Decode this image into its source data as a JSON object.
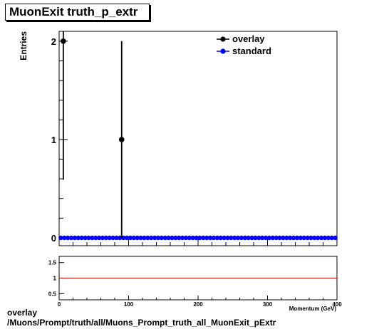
{
  "title": "MuonExit truth_p_extr",
  "footer": {
    "line1": "overlay",
    "line2": "/Muons/Prompt/truth/all/Muons_Prompt_truth_all_MuonExit_pExtr"
  },
  "colors": {
    "overlay": "#000000",
    "standard": "#0000ff",
    "ratio_line": "#cc0000"
  },
  "chart_data": [
    {
      "type": "scatter",
      "ylabel": "Entries",
      "xlim": [
        0,
        400
      ],
      "ylim": [
        -0.08,
        2.1
      ],
      "y_ticks": [
        0,
        1,
        2
      ],
      "legend": {
        "placement": "top-right"
      },
      "series": [
        {
          "name": "overlay",
          "points": [
            {
              "x": 6,
              "y": 2,
              "err_low": 1.41,
              "err_high": 2.1
            },
            {
              "x": 90,
              "y": 1,
              "err_low": 1.0,
              "err_high": 1.0
            }
          ]
        },
        {
          "name": "standard",
          "bin_width": 5,
          "bins": 80,
          "value": 0
        }
      ]
    },
    {
      "type": "line",
      "xlabel": "Momentum (GeV)",
      "xlim": [
        0,
        400
      ],
      "ylim": [
        0.3,
        1.7
      ],
      "x_ticks": [
        0,
        100,
        200,
        300,
        400
      ],
      "y_ticks": [
        0.5,
        1,
        1.5
      ],
      "reference_line": 1
    }
  ]
}
